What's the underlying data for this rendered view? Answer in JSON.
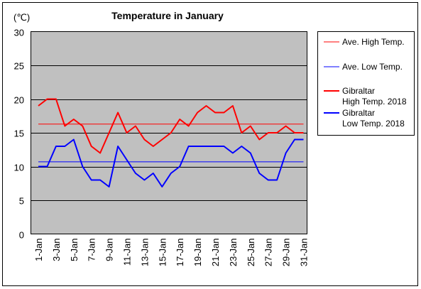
{
  "chart_data": {
    "type": "line",
    "title": "Temperature in January",
    "ylabel": "(℃)",
    "xlabel": "",
    "ylim": [
      0,
      30
    ],
    "yticks": [
      0,
      5,
      10,
      15,
      20,
      25,
      30
    ],
    "grid": true,
    "legend_position": "right",
    "x": [
      "1-Jan",
      "2-Jan",
      "3-Jan",
      "4-Jan",
      "5-Jan",
      "6-Jan",
      "7-Jan",
      "8-Jan",
      "9-Jan",
      "10-Jan",
      "11-Jan",
      "12-Jan",
      "13-Jan",
      "14-Jan",
      "15-Jan",
      "16-Jan",
      "17-Jan",
      "18-Jan",
      "19-Jan",
      "20-Jan",
      "21-Jan",
      "22-Jan",
      "23-Jan",
      "24-Jan",
      "25-Jan",
      "26-Jan",
      "27-Jan",
      "28-Jan",
      "29-Jan",
      "30-Jan",
      "31-Jan"
    ],
    "x_tick_labels": [
      "1-Jan",
      "3-Jan",
      "5-Jan",
      "7-Jan",
      "9-Jan",
      "11-Jan",
      "13-Jan",
      "15-Jan",
      "17-Jan",
      "19-Jan",
      "21-Jan",
      "23-Jan",
      "25-Jan",
      "27-Jan",
      "29-Jan",
      "31-Jan"
    ],
    "series": [
      {
        "name": "Ave. High Temp.",
        "color": "#ff0000",
        "width": 1,
        "values": [
          16.3,
          16.3,
          16.3,
          16.3,
          16.3,
          16.3,
          16.3,
          16.3,
          16.3,
          16.3,
          16.3,
          16.3,
          16.3,
          16.3,
          16.3,
          16.3,
          16.3,
          16.3,
          16.3,
          16.3,
          16.3,
          16.3,
          16.3,
          16.3,
          16.3,
          16.3,
          16.3,
          16.3,
          16.3,
          16.3,
          16.3
        ]
      },
      {
        "name": "Ave. Low Temp.",
        "color": "#0000ff",
        "width": 1,
        "values": [
          10.7,
          10.7,
          10.7,
          10.7,
          10.7,
          10.7,
          10.7,
          10.7,
          10.7,
          10.7,
          10.7,
          10.7,
          10.7,
          10.7,
          10.7,
          10.7,
          10.7,
          10.7,
          10.7,
          10.7,
          10.7,
          10.7,
          10.7,
          10.7,
          10.7,
          10.7,
          10.7,
          10.7,
          10.7,
          10.7,
          10.7
        ]
      },
      {
        "name": "Gibraltar High Temp. 2018",
        "color": "#ff0000",
        "width": 2,
        "values": [
          19,
          20,
          20,
          16,
          17,
          16,
          13,
          12,
          15,
          18,
          15,
          16,
          14,
          13,
          14,
          15,
          17,
          16,
          18,
          19,
          18,
          18,
          19,
          15,
          16,
          14,
          15,
          15,
          16,
          15,
          15
        ]
      },
      {
        "name": "Gibraltar Low Temp. 2018",
        "color": "#0000ff",
        "width": 2,
        "values": [
          10,
          10,
          13,
          13,
          14,
          10,
          8,
          8,
          7,
          13,
          11,
          9,
          8,
          9,
          7,
          9,
          10,
          13,
          13,
          13,
          13,
          13,
          12,
          13,
          12,
          9,
          8,
          8,
          12,
          14,
          14
        ]
      }
    ],
    "legend": [
      {
        "lines": [
          "Ave. High Temp."
        ],
        "color": "#ff0000",
        "width": 1
      },
      {
        "lines": [
          "Ave. Low Temp."
        ],
        "color": "#0000ff",
        "width": 1
      },
      {
        "lines": [
          "Gibraltar",
          "High Temp. 2018"
        ],
        "color": "#ff0000",
        "width": 2
      },
      {
        "lines": [
          "Gibraltar",
          "Low Temp. 2018"
        ],
        "color": "#0000ff",
        "width": 2
      }
    ],
    "colors": {
      "plot_background": "#c0c0c0",
      "gridline": "#000000",
      "page_background": "#ffffff"
    }
  }
}
